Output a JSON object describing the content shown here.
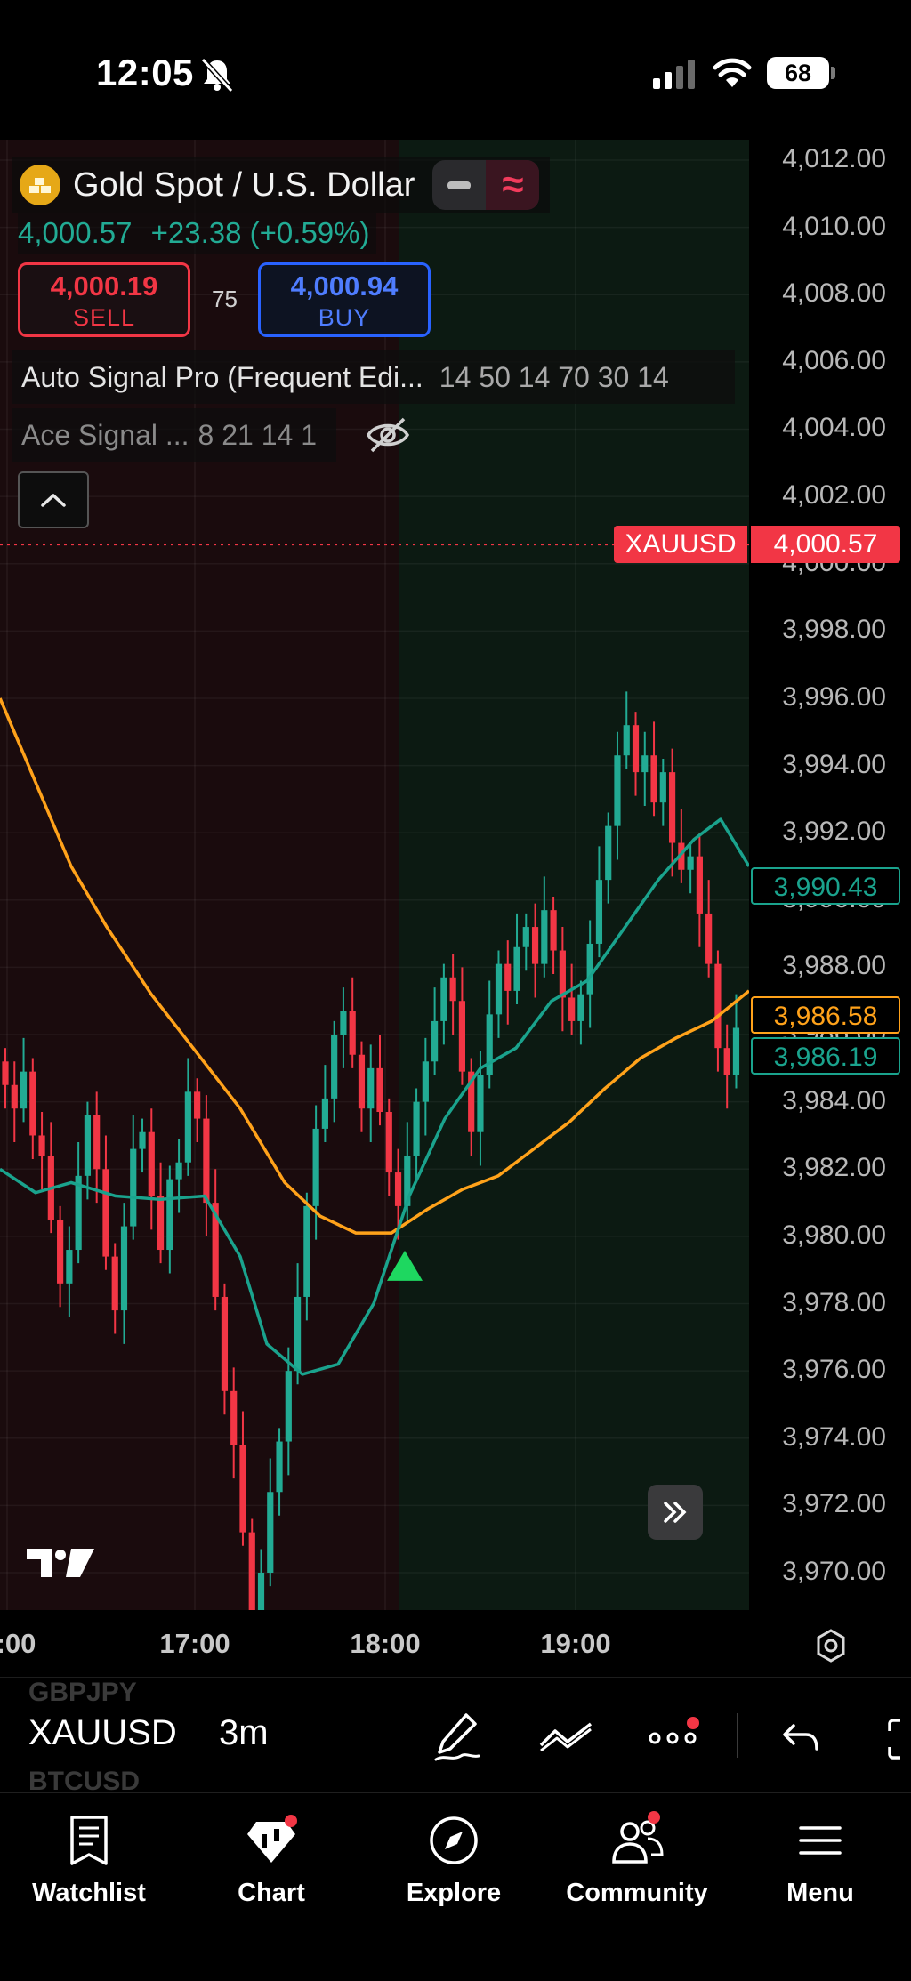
{
  "status_bar": {
    "time": "12:05",
    "battery": "68"
  },
  "chart": {
    "symbol_name": "Gold Spot / U.S. Dollar",
    "last_price": "4,000.57",
    "change": "+23.38 (+0.59%)",
    "sell": {
      "price": "4,000.19",
      "label": "SELL"
    },
    "buy": {
      "price": "4,000.94",
      "label": "BUY"
    },
    "spread": "75",
    "indicators": [
      {
        "name": "Auto Signal Pro (Frequent Edi...",
        "params": "14 50 14 70 30 14"
      },
      {
        "name": "Ace Signal ...",
        "params": "8 21 14 1"
      }
    ],
    "price_scale": [
      "4,012.00",
      "4,010.00",
      "4,008.00",
      "4,006.00",
      "4,004.00",
      "4,002.00",
      "4,000.00",
      "3,998.00",
      "3,996.00",
      "3,994.00",
      "3,992.00",
      "3,990.00",
      "3,988.00",
      "3,986.00",
      "3,984.00",
      "3,982.00",
      "3,980.00",
      "3,978.00",
      "3,976.00",
      "3,974.00",
      "3,972.00",
      "3,970.00"
    ],
    "price_labels": {
      "symbol_tag": "XAUUSD",
      "current": "4,000.57",
      "teal_fast": "3,990.43",
      "orange_ma": "3,986.58",
      "teal_ma": "3,986.19"
    },
    "time_labels": [
      ":00",
      "17:00",
      "18:00",
      "19:00"
    ],
    "colors": {
      "up": "#22ab94",
      "down": "#f23645",
      "orange": "#ffa21a",
      "teal": "#1aa38d"
    }
  },
  "toolbar": {
    "symbol": "XAUUSD",
    "interval": "3m",
    "symbol_prev": "GBPJPY",
    "symbol_next": "BTCUSD"
  },
  "tabs": [
    {
      "label": "Watchlist",
      "icon": "book-icon"
    },
    {
      "label": "Chart",
      "icon": "chart-icon"
    },
    {
      "label": "Explore",
      "icon": "compass-icon"
    },
    {
      "label": "Community",
      "icon": "people-icon"
    },
    {
      "label": "Menu",
      "icon": "hamburger-icon"
    }
  ],
  "chart_data": {
    "type": "candlestick",
    "title": "Gold Spot / U.S. Dollar",
    "symbol": "XAUUSD",
    "interval": "3m",
    "ylim": [
      3970,
      4012
    ],
    "x_ticks": [
      ":00",
      "17:00",
      "18:00",
      "19:00"
    ],
    "annotations": [
      {
        "type": "buy-signal-triangle",
        "near_time": "18:00"
      }
    ],
    "series": [
      {
        "name": "price",
        "last": 4000.57
      },
      {
        "name": "",
        "last": 3986.58
      },
      {
        "name": "",
        "last": 3986.19
      },
      {
        "name": "",
        "last": 3990.43
      }
    ]
  }
}
